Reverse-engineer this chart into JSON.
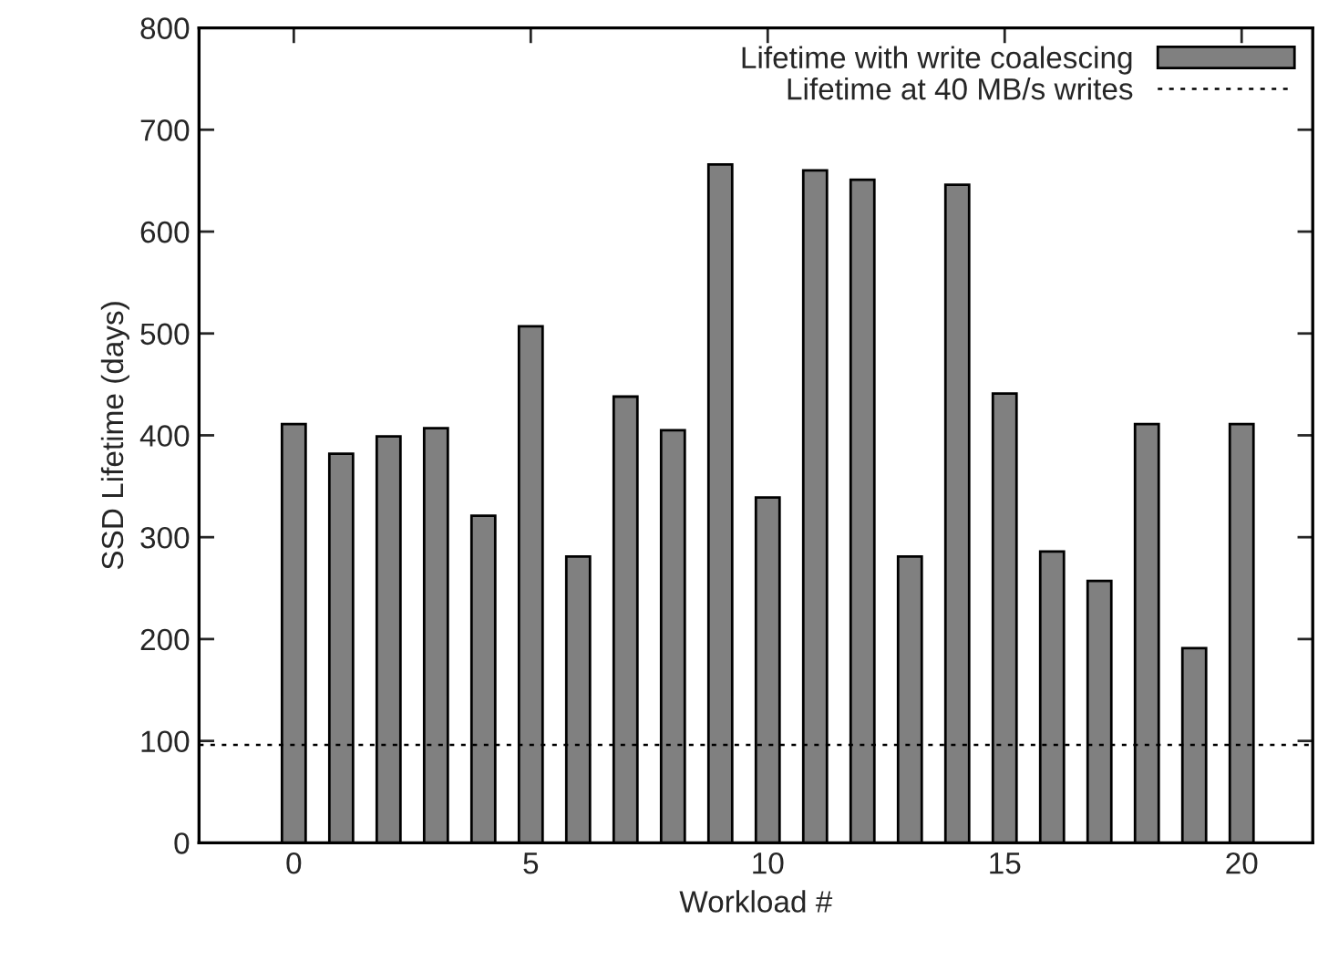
{
  "chart_data": {
    "type": "bar",
    "xlabel": "Workload #",
    "ylabel": "SSD Lifetime (days)",
    "x": [
      0,
      1,
      2,
      3,
      4,
      5,
      6,
      7,
      8,
      9,
      10,
      11,
      12,
      13,
      14,
      15,
      16,
      17,
      18,
      19,
      20
    ],
    "series": [
      {
        "name": "Lifetime with write coalescing",
        "color": "#808080",
        "values": [
          411,
          382,
          399,
          407,
          321,
          507,
          281,
          438,
          405,
          666,
          339,
          660,
          651,
          281,
          646,
          441,
          286,
          257,
          411,
          191,
          411
        ]
      }
    ],
    "ref_lines": [
      {
        "axis": "y",
        "value": 96,
        "label": "Lifetime at 40 MB/s writes",
        "color": "#000000",
        "line_style": "dotted"
      }
    ],
    "xlim": [
      -2,
      21.5
    ],
    "xticks": [
      0,
      5,
      10,
      15,
      20
    ],
    "ylim": [
      0,
      800
    ],
    "yticks": [
      0,
      100,
      200,
      300,
      400,
      500,
      600,
      700,
      800
    ],
    "grid": false,
    "legend": "top right"
  }
}
